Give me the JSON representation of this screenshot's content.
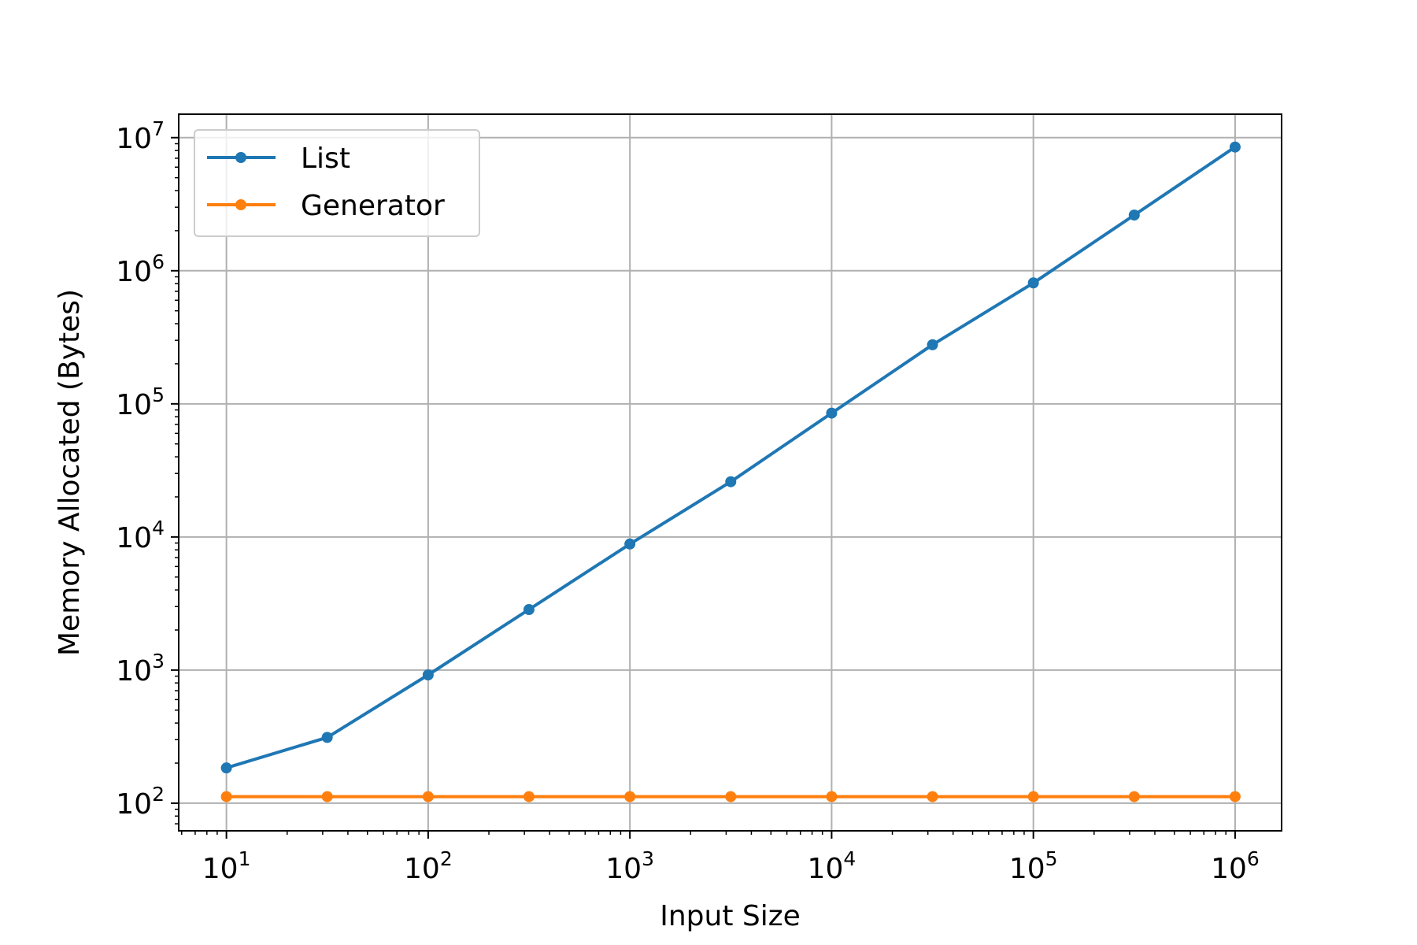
{
  "chart_data": {
    "type": "line",
    "title": "",
    "xlabel": "Input Size",
    "ylabel": "Memory Allocated (Bytes)",
    "xscale": "log",
    "yscale": "log",
    "xlim": [
      5.8,
      1700000
    ],
    "ylim": [
      62,
      15000000
    ],
    "grid": true,
    "legend_position": "top-left",
    "x_ticks": [
      {
        "value": 10,
        "base": "10",
        "exp": "1"
      },
      {
        "value": 100,
        "base": "10",
        "exp": "2"
      },
      {
        "value": 1000,
        "base": "10",
        "exp": "3"
      },
      {
        "value": 10000,
        "base": "10",
        "exp": "4"
      },
      {
        "value": 100000,
        "base": "10",
        "exp": "5"
      },
      {
        "value": 1000000,
        "base": "10",
        "exp": "6"
      }
    ],
    "y_ticks": [
      {
        "value": 100,
        "base": "10",
        "exp": "2"
      },
      {
        "value": 1000,
        "base": "10",
        "exp": "3"
      },
      {
        "value": 10000,
        "base": "10",
        "exp": "4"
      },
      {
        "value": 100000,
        "base": "10",
        "exp": "5"
      },
      {
        "value": 1000000,
        "base": "10",
        "exp": "6"
      },
      {
        "value": 10000000,
        "base": "10",
        "exp": "7"
      }
    ],
    "x": [
      10,
      31.6,
      100,
      316,
      1000,
      3162,
      10000,
      31623,
      100000,
      316228,
      1000000
    ],
    "series": [
      {
        "name": "List",
        "color": "#1f77b4",
        "marker": "circle",
        "values": [
          184,
          312,
          920,
          2848,
          8856,
          26000,
          85200,
          278000,
          810000,
          2620000,
          8500000
        ]
      },
      {
        "name": "Generator",
        "color": "#ff7f0e",
        "marker": "circle",
        "values": [
          112,
          112,
          112,
          112,
          112,
          112,
          112,
          112,
          112,
          112,
          112
        ]
      }
    ]
  }
}
